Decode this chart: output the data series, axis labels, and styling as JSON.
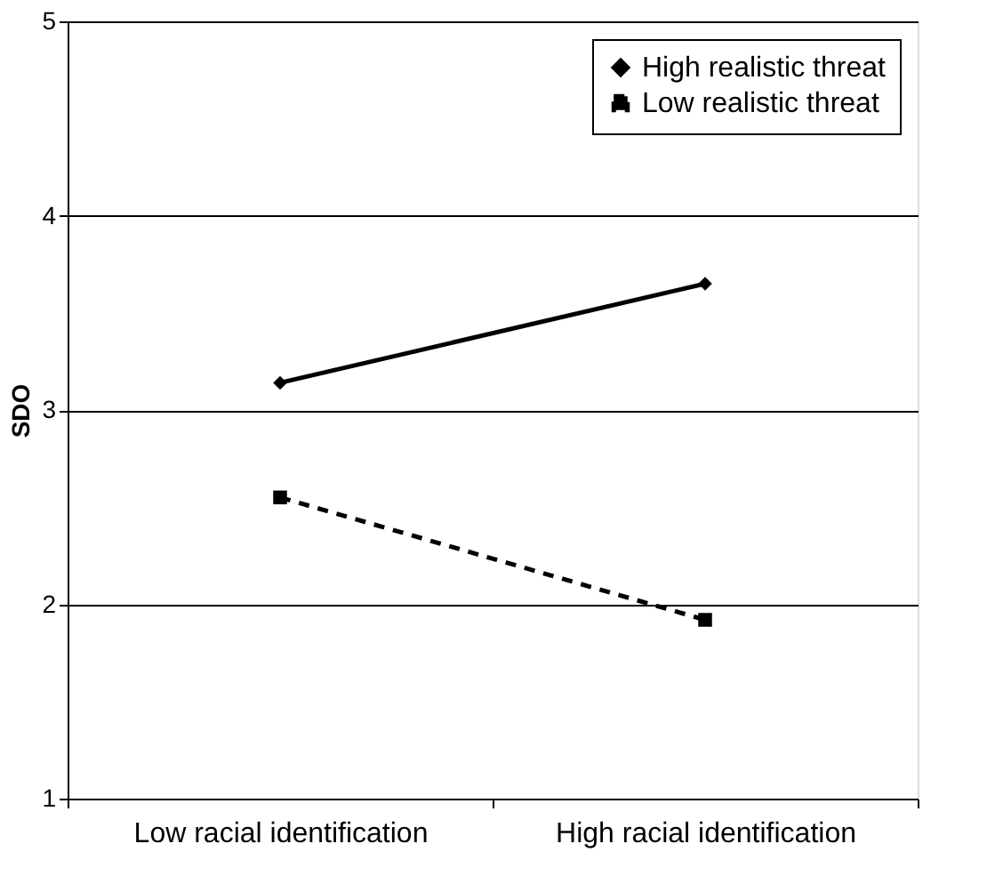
{
  "chart_data": {
    "type": "line",
    "ylabel": "SDO",
    "categories": [
      "Low racial identification",
      "High racial identification"
    ],
    "series": [
      {
        "name": "High realistic threat",
        "color": "#000000",
        "values": [
          3.14,
          3.65
        ],
        "marker": "diamond",
        "line_style": "solid"
      },
      {
        "name": "Low realistic threat",
        "color": "#000000",
        "values": [
          2.55,
          1.92
        ],
        "marker": "square",
        "line_style": "dashed"
      }
    ],
    "ylim": [
      1,
      5
    ],
    "yticks": [
      1,
      2,
      3,
      4,
      5
    ],
    "grid": "y",
    "legend": "top right"
  }
}
